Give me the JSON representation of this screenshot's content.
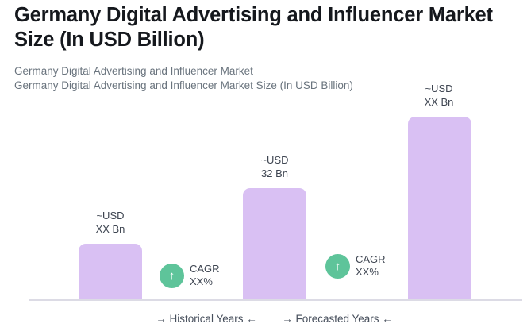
{
  "header": {
    "title": "Germany Digital Advertising and Influencer Market Size (In USD Billion)",
    "subtitle_line1": "Germany Digital Advertising and Influencer Market",
    "subtitle_line2": "Germany Digital Advertising and Influencer Market Size (In USD Billion)"
  },
  "chart_data": {
    "type": "bar",
    "title": "Germany Digital Advertising and Influencer Market Size (In USD Billion)",
    "categories": [
      "Historical Years",
      "Forecasted Years (start)",
      "Forecasted Years (end)"
    ],
    "values": [
      16,
      32,
      53
    ],
    "values_note": "first and third values masked as XX on chart; estimated from bar heights (70px, 140px, 230px) anchored to labeled 32 Bn bar",
    "bars": [
      {
        "group": "Historical Years",
        "label_line1": "~USD",
        "label_line2": "XX Bn"
      },
      {
        "group": "Forecasted Years",
        "label_line1": "~USD",
        "label_line2": "32 Bn"
      },
      {
        "group": "Forecasted Years",
        "label_line1": "~USD",
        "label_line2": "XX Bn"
      }
    ],
    "x_group_labels": [
      "→ Historical Years ←",
      "→ Forecasted Years ←"
    ],
    "cagr_badges": [
      {
        "icon": "arrow-up",
        "glyph": "↑",
        "line1": "CAGR",
        "line2": "XX%"
      },
      {
        "icon": "arrow-up",
        "glyph": "↑",
        "line1": "CAGR",
        "line2": "XX%"
      }
    ],
    "grid": false,
    "legend": false,
    "axis_baseline": true
  },
  "colors": {
    "bar_fill": "#d9c0f3",
    "cagr_circle": "#5ec49a",
    "cagr_arrow": "#ffffff",
    "baseline": "#dcdbe5",
    "title_text": "#15181d",
    "subtitle_text": "#6a747e",
    "label_text": "#3e4551",
    "axis_text": "#474f5c"
  }
}
